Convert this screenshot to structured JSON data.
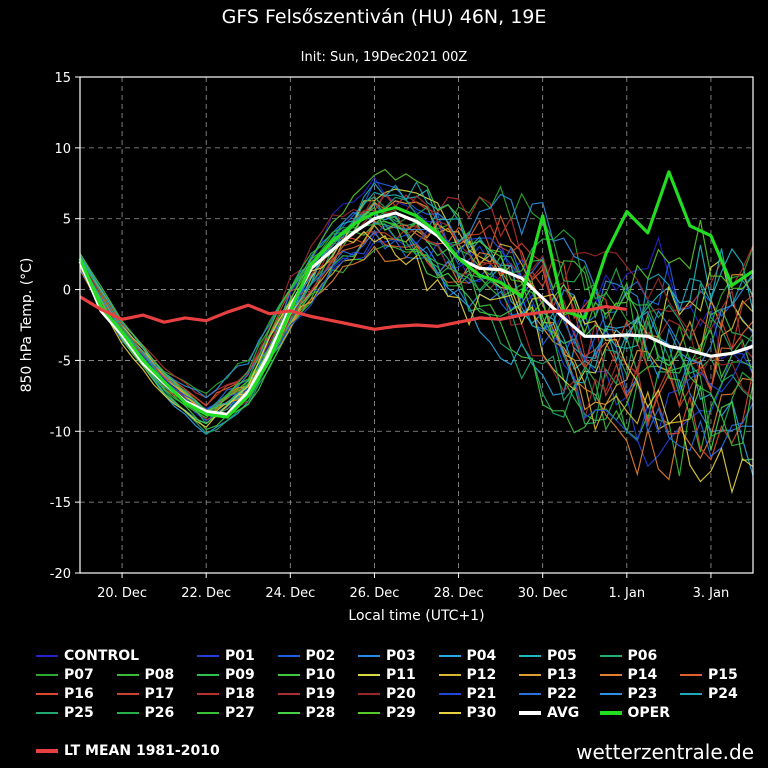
{
  "title": "GFS Felsőszentiván (HU) 46N, 19E",
  "subtitle": "Init: Sun, 19Dec2021 00Z",
  "watermark": "wetterzentrale.de",
  "chart_data": {
    "type": "line",
    "title": "GFS Felsőszentiván (HU) 46N, 19E",
    "subtitle": "Init: Sun, 19Dec2021 00Z",
    "xlabel": "Local time (UTC+1)",
    "ylabel": "850 hPa Temp. (°C)",
    "xlim": [
      0.0,
      16.0
    ],
    "ylim": [
      -20,
      15
    ],
    "grid": true,
    "yticks": [
      15,
      10,
      5,
      0,
      -5,
      -10,
      -15,
      -20
    ],
    "xticks": [
      {
        "pos": 1,
        "label": "20. Dec"
      },
      {
        "pos": 3,
        "label": "22. Dec"
      },
      {
        "pos": 5,
        "label": "24. Dec"
      },
      {
        "pos": 7,
        "label": "26. Dec"
      },
      {
        "pos": 9,
        "label": "28. Dec"
      },
      {
        "pos": 11,
        "label": "30. Dec"
      },
      {
        "pos": 13,
        "label": "1. Jan"
      },
      {
        "pos": 15,
        "label": "3. Jan"
      }
    ],
    "ensemble_spread": {
      "x": [
        0,
        1,
        2,
        3,
        4,
        5,
        6,
        7,
        8,
        9,
        10,
        11,
        12,
        13,
        14,
        15,
        16
      ],
      "center": [
        2,
        -3,
        -6.5,
        -8.8,
        -6.5,
        -1,
        3.2,
        5.6,
        4.6,
        2.3,
        1.4,
        -0.6,
        -3.3,
        -3.2,
        -4.1,
        -4.6,
        -4.0
      ],
      "amplitude": [
        0.6,
        0.8,
        1,
        1.3,
        1.6,
        2,
        2.4,
        2.6,
        3,
        3.5,
        4.5,
        5.5,
        6.5,
        7,
        7.5,
        7.5,
        7.5
      ]
    },
    "series": [
      {
        "name": "CONTROL",
        "color": "#2424c8",
        "width": 1.2
      },
      {
        "name": "P01",
        "color": "#1f3fd6",
        "width": 1.2
      },
      {
        "name": "P02",
        "color": "#2060e0",
        "width": 1.2
      },
      {
        "name": "P03",
        "color": "#2a88e6",
        "width": 1.2
      },
      {
        "name": "P04",
        "color": "#28a8e8",
        "width": 1.2
      },
      {
        "name": "P05",
        "color": "#20b8c0",
        "width": 1.2
      },
      {
        "name": "P06",
        "color": "#22b070",
        "width": 1.2
      },
      {
        "name": "P07",
        "color": "#2aa830",
        "width": 1.2
      },
      {
        "name": "P08",
        "color": "#3ab83a",
        "width": 1.2
      },
      {
        "name": "P09",
        "color": "#30c050",
        "width": 1.2
      },
      {
        "name": "P10",
        "color": "#40c840",
        "width": 1.2
      },
      {
        "name": "P11",
        "color": "#d8d840",
        "width": 1.2
      },
      {
        "name": "P12",
        "color": "#d8b830",
        "width": 1.2
      },
      {
        "name": "P13",
        "color": "#e0a030",
        "width": 1.2
      },
      {
        "name": "P14",
        "color": "#e08030",
        "width": 1.2
      },
      {
        "name": "P15",
        "color": "#e06030",
        "width": 1.2
      },
      {
        "name": "P16",
        "color": "#d84830",
        "width": 1.2
      },
      {
        "name": "P17",
        "color": "#c84030",
        "width": 1.2
      },
      {
        "name": "P18",
        "color": "#b83030",
        "width": 1.2
      },
      {
        "name": "P19",
        "color": "#a83030",
        "width": 1.2
      },
      {
        "name": "P20",
        "color": "#982828",
        "width": 1.2
      },
      {
        "name": "P21",
        "color": "#2048d8",
        "width": 1.2
      },
      {
        "name": "P22",
        "color": "#2870e0",
        "width": 1.2
      },
      {
        "name": "P23",
        "color": "#3090e0",
        "width": 1.2
      },
      {
        "name": "P24",
        "color": "#20a8b8",
        "width": 1.2
      },
      {
        "name": "P25",
        "color": "#20a870",
        "width": 1.2
      },
      {
        "name": "P26",
        "color": "#28b048",
        "width": 1.2
      },
      {
        "name": "P27",
        "color": "#38c038",
        "width": 1.2
      },
      {
        "name": "P28",
        "color": "#48d048",
        "width": 1.2
      },
      {
        "name": "P29",
        "color": "#58c828",
        "width": 1.2
      },
      {
        "name": "P30",
        "color": "#e8d040",
        "width": 1.2
      },
      {
        "name": "AVG",
        "color": "#ffffff",
        "width": 3.2,
        "x": [
          0,
          0.5,
          1,
          1.5,
          2,
          2.5,
          3,
          3.5,
          4,
          4.5,
          5,
          5.5,
          6,
          6.5,
          7,
          7.5,
          8,
          8.5,
          9,
          9.5,
          10,
          10.5,
          11,
          11.5,
          12,
          12.5,
          13,
          13.5,
          14,
          14.5,
          15,
          15.5,
          16
        ],
        "values": [
          2,
          -1.5,
          -3.2,
          -5.2,
          -6.6,
          -7.9,
          -8.6,
          -8.8,
          -7.2,
          -4.5,
          -1.2,
          1.5,
          2.8,
          4.0,
          5.0,
          5.4,
          4.8,
          3.8,
          2.2,
          1.5,
          1.4,
          0.8,
          -0.6,
          -2.0,
          -3.3,
          -3.3,
          -3.2,
          -3.3,
          -4.0,
          -4.3,
          -4.7,
          -4.5,
          -4.0
        ]
      },
      {
        "name": "OPER",
        "color": "#22dd22",
        "width": 3.2,
        "x": [
          0,
          0.5,
          1,
          1.5,
          2,
          2.5,
          3,
          3.5,
          4,
          4.5,
          5,
          5.5,
          6,
          6.5,
          7,
          7.5,
          8,
          8.5,
          9,
          9.5,
          10,
          10.5,
          11,
          11.5,
          12,
          12.5,
          13,
          13.5,
          14,
          14.5,
          15,
          15.5,
          16
        ],
        "values": [
          2.2,
          -1.2,
          -3.0,
          -5.0,
          -6.5,
          -8.0,
          -8.8,
          -9.0,
          -7.5,
          -5.0,
          -1.5,
          1.8,
          3.4,
          4.6,
          5.4,
          5.8,
          5.2,
          4.0,
          2.2,
          1.0,
          0.5,
          -0.5,
          5.2,
          -1.5,
          -2.0,
          2.5,
          5.5,
          4.0,
          8.3,
          4.5,
          3.8,
          0.3,
          1.3
        ]
      },
      {
        "name": "LT MEAN 1981-2010",
        "color": "#e84040",
        "width": 3.2,
        "x": [
          0,
          0.5,
          1,
          1.5,
          2,
          2.5,
          3,
          3.5,
          4,
          4.5,
          5,
          5.5,
          6,
          6.5,
          7,
          7.5,
          8,
          8.5,
          9,
          9.5,
          10,
          10.5,
          11,
          11.5,
          12,
          12.5,
          13
        ],
        "values": [
          -0.5,
          -1.4,
          -2.1,
          -1.8,
          -2.3,
          -2.0,
          -2.2,
          -1.6,
          -1.1,
          -1.7,
          -1.5,
          -1.9,
          -2.2,
          -2.5,
          -2.8,
          -2.6,
          -2.5,
          -2.6,
          -2.3,
          -2.0,
          -2.1,
          -1.8,
          -1.6,
          -1.5,
          -1.5,
          -1.2,
          -1.4
        ]
      }
    ]
  }
}
